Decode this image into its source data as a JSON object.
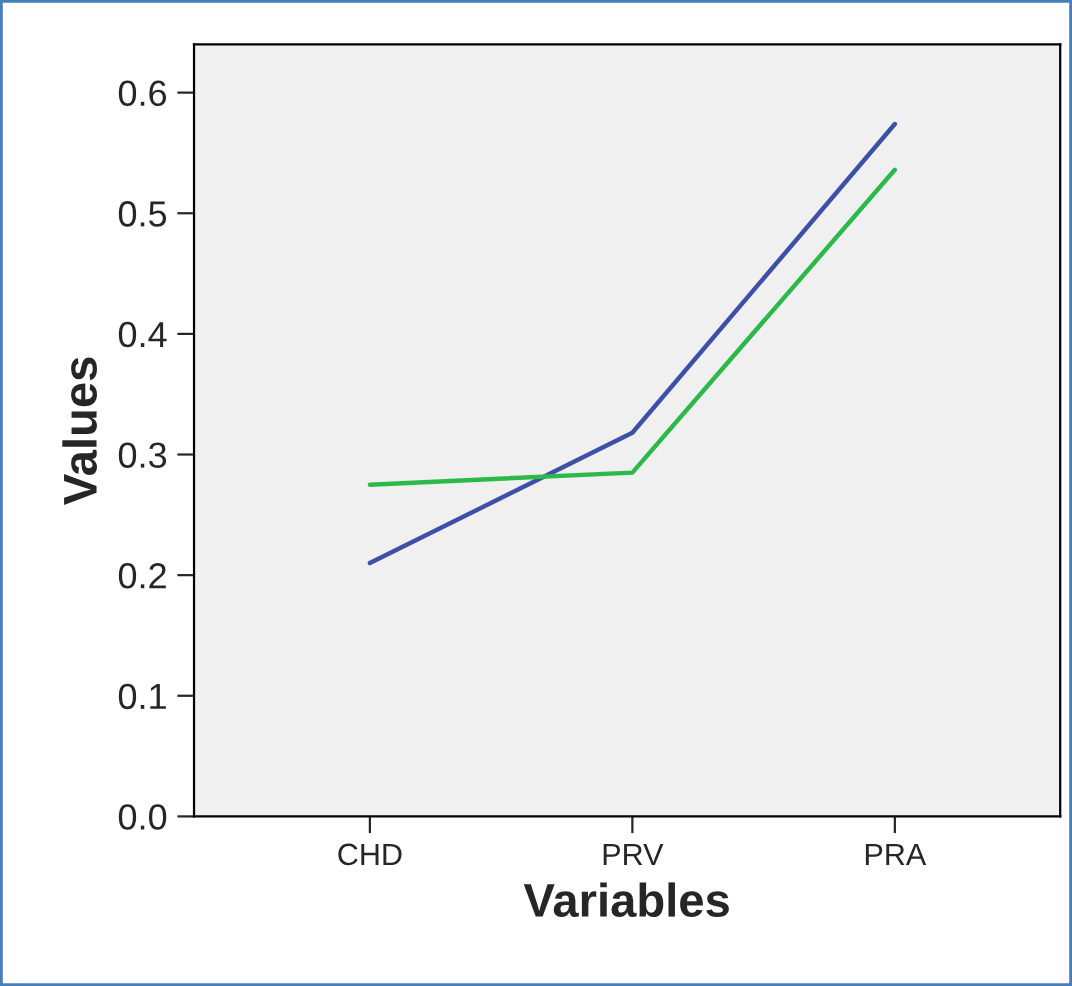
{
  "chart_data": {
    "type": "line",
    "xlabel": "Variables",
    "ylabel": "Values",
    "categories": [
      "CHD",
      "PRV",
      "PRA"
    ],
    "series": [
      {
        "color": "#3e4fa8",
        "values": [
          0.21,
          0.318,
          0.574
        ]
      },
      {
        "color": "#2db84a",
        "values": [
          0.275,
          0.285,
          0.536
        ]
      }
    ],
    "ylim": [
      0,
      0.64
    ],
    "yticks": [
      {
        "value": 0,
        "label": "0.0"
      },
      {
        "value": 0.1,
        "label": "0.1"
      },
      {
        "value": 0.2,
        "label": "0.2"
      },
      {
        "value": 0.3,
        "label": "0.3"
      },
      {
        "value": 0.4,
        "label": "0.4"
      },
      {
        "value": 0.5,
        "label": "0.5"
      },
      {
        "value": 0.6,
        "label": "0.6"
      }
    ],
    "grid": false,
    "legend": false
  }
}
